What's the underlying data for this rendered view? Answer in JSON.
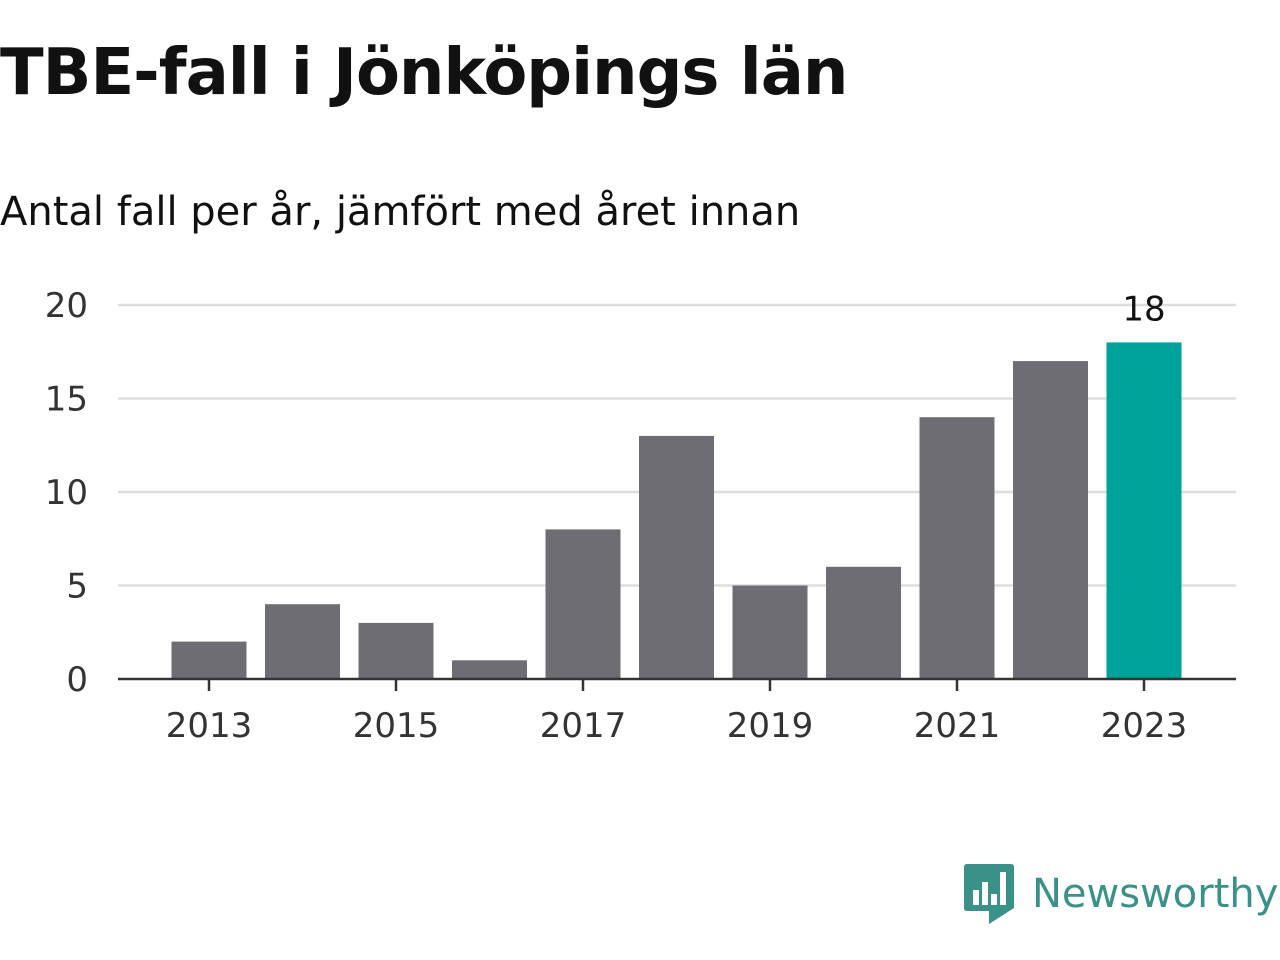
{
  "title": "TBE-fall i Jönköpings län",
  "subtitle": "Antal fall per år, jämfört med året innan",
  "brand": "Newsworthy",
  "colors": {
    "bar": "#6e6d73",
    "highlight": "#00a39a",
    "grid": "#dddddd",
    "axis": "#333333",
    "brand": "#3a9188"
  },
  "chart_data": {
    "type": "bar",
    "categories": [
      "2013",
      "2014",
      "2015",
      "2016",
      "2017",
      "2018",
      "2019",
      "2020",
      "2021",
      "2022",
      "2023"
    ],
    "values": [
      2,
      4,
      3,
      1,
      8,
      13,
      5,
      6,
      14,
      17,
      18
    ],
    "highlight": "2023",
    "data_labels": [
      "",
      "",
      "",
      "",
      "",
      "",
      "",
      "",
      "",
      "",
      "18"
    ],
    "x_tick_labels": [
      "2013",
      "2015",
      "2017",
      "2019",
      "2021",
      "2023"
    ],
    "y_ticks": [
      "0",
      "5",
      "10",
      "15",
      "20"
    ],
    "ylim": [
      0,
      20
    ],
    "grid": true,
    "legend": "none"
  }
}
